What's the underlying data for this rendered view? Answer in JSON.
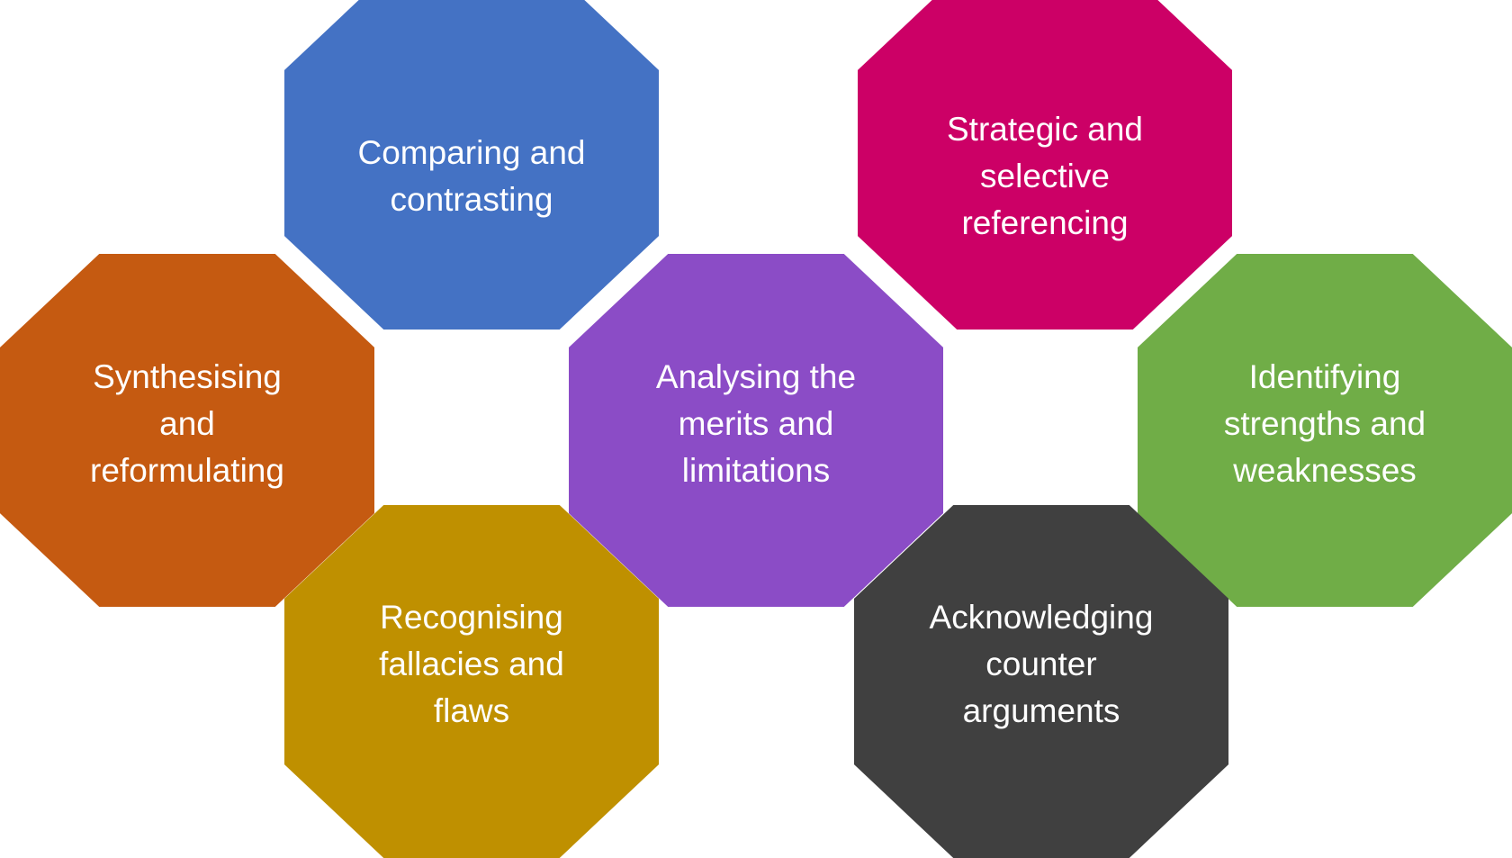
{
  "nodes": {
    "comparing": {
      "label": "Comparing and contrasting",
      "color": "#4472C4"
    },
    "strategic": {
      "label": "Strategic and selective referencing",
      "color": "#CC0066"
    },
    "synthesising": {
      "label": "Synthesising and reformulating",
      "color": "#C55A11"
    },
    "analysing": {
      "label": "Analysing the merits and limitations",
      "color": "#8B4CC6"
    },
    "identifying": {
      "label": "Identifying strengths and weaknesses",
      "color": "#70AD47"
    },
    "recognising": {
      "label": "Recognising fallacies and flaws",
      "color": "#BF9000"
    },
    "acknowledging": {
      "label": "Acknowledging counter arguments",
      "color": "#404040"
    }
  }
}
